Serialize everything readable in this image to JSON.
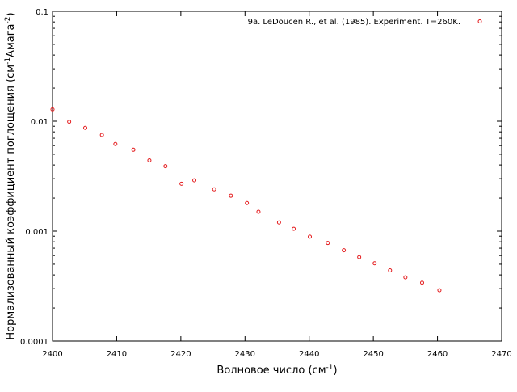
{
  "chart_data": {
    "type": "scatter",
    "title": "",
    "xlabel": {
      "main": "Волновое число (см",
      "sup": "-1",
      "close": ")"
    },
    "ylabel": {
      "part1": "Нормализованный коэффициент поглощения (см",
      "sup1": "-1",
      "part2": "Амага",
      "sup2": "-2",
      "close": ")"
    },
    "xlim": [
      2400,
      2470
    ],
    "ylim": [
      0.0001,
      0.1
    ],
    "yscale": "log",
    "grid": false,
    "legend_position": "top-right",
    "xticks": [
      {
        "value": 2400,
        "label": "2400"
      },
      {
        "value": 2410,
        "label": "2410"
      },
      {
        "value": 2420,
        "label": "2420"
      },
      {
        "value": 2430,
        "label": "2430"
      },
      {
        "value": 2440,
        "label": "2440"
      },
      {
        "value": 2450,
        "label": "2450"
      },
      {
        "value": 2460,
        "label": "2460"
      },
      {
        "value": 2470,
        "label": "2470"
      }
    ],
    "yticks": [
      {
        "value": 0.0001,
        "label": "0.0001"
      },
      {
        "value": 0.001,
        "label": "0.001"
      },
      {
        "value": 0.01,
        "label": "0.01"
      },
      {
        "value": 0.1,
        "label": "0.1"
      }
    ],
    "series": [
      {
        "name": "9a. LeDoucen R., et al. (1985). Experiment. T=260K.",
        "color": "#e41a1c",
        "marker": "open-circle",
        "x": [
          2400.0,
          2402.6,
          2405.1,
          2407.7,
          2409.8,
          2412.6,
          2415.1,
          2417.6,
          2420.1,
          2422.1,
          2425.2,
          2427.8,
          2430.3,
          2432.1,
          2435.3,
          2437.6,
          2440.1,
          2442.9,
          2445.4,
          2447.8,
          2450.2,
          2452.6,
          2455.0,
          2457.6,
          2460.3
        ],
        "y": [
          0.0128,
          0.0099,
          0.0087,
          0.0075,
          0.0062,
          0.0055,
          0.0044,
          0.0039,
          0.0027,
          0.0029,
          0.0024,
          0.0021,
          0.0018,
          0.0015,
          0.0012,
          0.00105,
          0.00089,
          0.00078,
          0.00067,
          0.00058,
          0.00051,
          0.00044,
          0.00038,
          0.00034,
          0.00029
        ]
      }
    ]
  }
}
